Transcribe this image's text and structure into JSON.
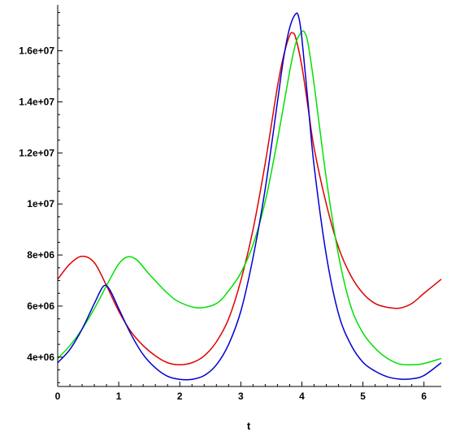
{
  "chart_data": {
    "type": "line",
    "xlabel": "t",
    "ylabel": "",
    "xlim": [
      0,
      6.2832
    ],
    "ylim": [
      2850000,
      17800000
    ],
    "grid": false,
    "x_ticks": [
      0,
      1,
      2,
      3,
      4,
      5,
      6
    ],
    "x_tick_labels": [
      "0",
      "1",
      "2",
      "3",
      "4",
      "5",
      "6"
    ],
    "y_ticks": [
      4000000,
      6000000,
      8000000,
      10000000,
      12000000,
      14000000,
      16000000
    ],
    "y_tick_labels": [
      "4e+06",
      "6e+06",
      "8e+06",
      "1e+07",
      "1.2e+07",
      "1.4e+07",
      "1.6e+07"
    ],
    "series": [
      {
        "color": "#e00000",
        "x": [
          0,
          0.2,
          0.4,
          0.6,
          0.8,
          1.0,
          1.2,
          1.4,
          1.6,
          1.8,
          2.0,
          2.2,
          2.4,
          2.6,
          2.8,
          3.0,
          3.2,
          3.4,
          3.6,
          3.7,
          3.8,
          3.85,
          3.9,
          4.0,
          4.1,
          4.2,
          4.4,
          4.6,
          4.8,
          5.0,
          5.2,
          5.4,
          5.6,
          5.8,
          6.0,
          6.2832
        ],
        "values": [
          7050000,
          7650000,
          7950000,
          7700000,
          6800000,
          5800000,
          5000000,
          4450000,
          4050000,
          3780000,
          3700000,
          3780000,
          4050000,
          4600000,
          5500000,
          7000000,
          9000000,
          11600000,
          14600000,
          15800000,
          16600000,
          16700000,
          16500000,
          15400000,
          13800000,
          12200000,
          10000000,
          8300000,
          7200000,
          6500000,
          6100000,
          5950000,
          5920000,
          6100000,
          6500000,
          7050000
        ]
      },
      {
        "color": "#00e000",
        "x": [
          0,
          0.2,
          0.4,
          0.6,
          0.8,
          1.0,
          1.15,
          1.3,
          1.5,
          1.8,
          2.0,
          2.3,
          2.6,
          2.8,
          3.0,
          3.2,
          3.4,
          3.6,
          3.8,
          3.9,
          4.0,
          4.05,
          4.1,
          4.2,
          4.4,
          4.6,
          4.8,
          5.0,
          5.2,
          5.4,
          5.6,
          5.8,
          6.0,
          6.2832
        ],
        "values": [
          3950000,
          4450000,
          5100000,
          5900000,
          6800000,
          7650000,
          7930000,
          7800000,
          7250000,
          6500000,
          6150000,
          5930000,
          6100000,
          6600000,
          7300000,
          8400000,
          10100000,
          12500000,
          15200000,
          16300000,
          16750000,
          16700000,
          16300000,
          14700000,
          11000000,
          8000000,
          6000000,
          4950000,
          4350000,
          3950000,
          3730000,
          3700000,
          3750000,
          3950000
        ]
      },
      {
        "color": "#0000d0",
        "x": [
          0,
          0.2,
          0.4,
          0.6,
          0.75,
          0.85,
          1.0,
          1.2,
          1.4,
          1.6,
          1.8,
          2.0,
          2.2,
          2.4,
          2.6,
          2.8,
          3.0,
          3.2,
          3.4,
          3.6,
          3.7,
          3.8,
          3.9,
          3.95,
          4.0,
          4.1,
          4.2,
          4.4,
          4.6,
          4.8,
          5.0,
          5.2,
          5.4,
          5.6,
          5.8,
          6.0,
          6.2832
        ],
        "values": [
          3780000,
          4300000,
          5100000,
          6100000,
          6780000,
          6650000,
          5900000,
          4900000,
          4100000,
          3580000,
          3250000,
          3130000,
          3130000,
          3280000,
          3700000,
          4500000,
          5800000,
          7900000,
          10600000,
          14000000,
          15700000,
          16900000,
          17450000,
          17300000,
          16500000,
          14000000,
          11500000,
          8000000,
          5700000,
          4500000,
          3800000,
          3450000,
          3230000,
          3140000,
          3150000,
          3280000,
          3780000
        ]
      }
    ]
  }
}
